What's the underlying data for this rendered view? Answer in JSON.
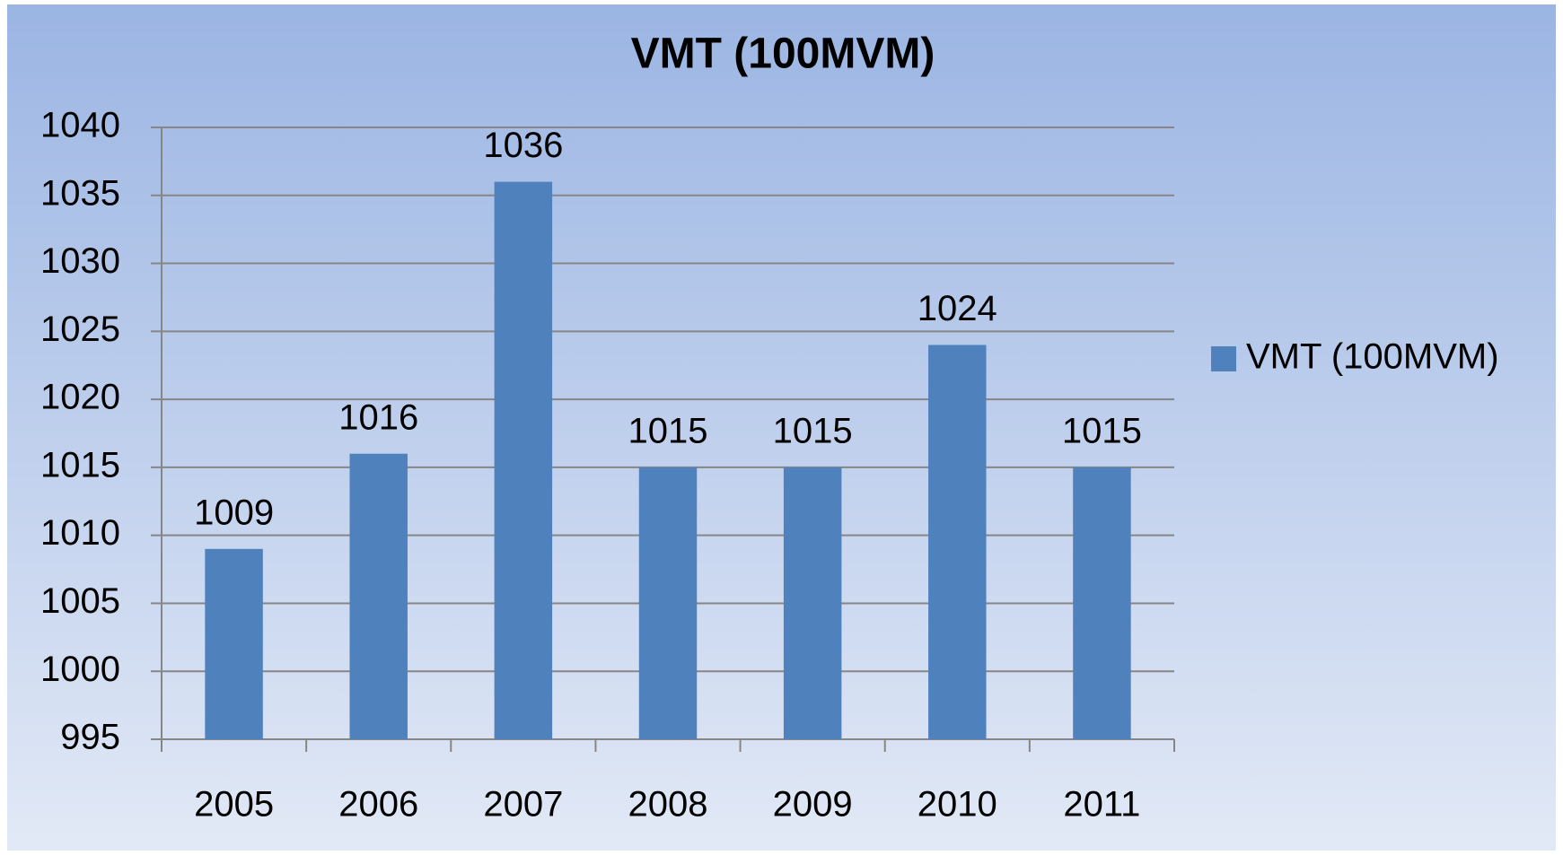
{
  "chart_data": {
    "type": "bar",
    "title": "VMT (100MVM)",
    "categories": [
      "2005",
      "2006",
      "2007",
      "2008",
      "2009",
      "2010",
      "2011"
    ],
    "series": [
      {
        "name": "VMT (100MVM)",
        "color": "#4f81bd",
        "values": [
          1009,
          1016,
          1036,
          1015,
          1015,
          1024,
          1015
        ]
      }
    ],
    "ylim": [
      995,
      1040
    ],
    "yticks": [
      995,
      1000,
      1005,
      1010,
      1015,
      1020,
      1025,
      1030,
      1035,
      1040
    ],
    "grid": true,
    "legend": "right",
    "data_labels": true
  }
}
